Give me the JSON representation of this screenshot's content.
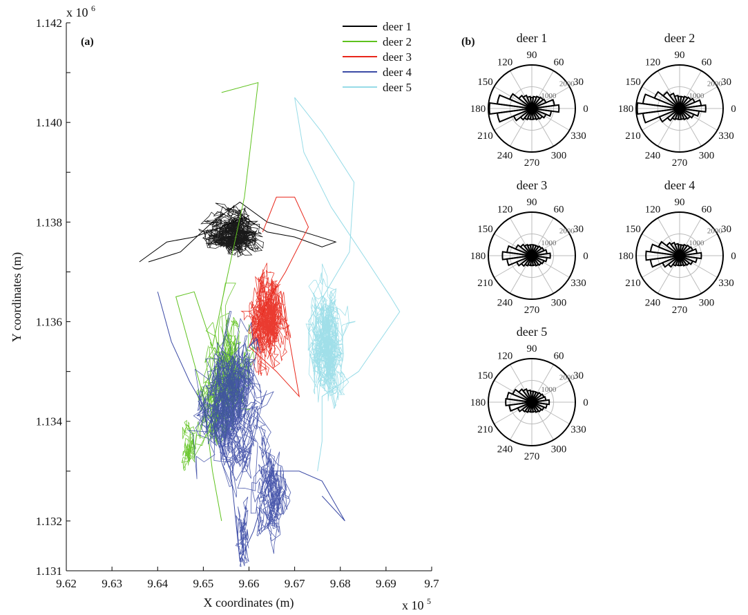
{
  "chart_data": [
    {
      "type": "line",
      "panel_label": "(a)",
      "xlabel": "X coordinates (m)",
      "ylabel": "Y coordinates (m)",
      "x_multiplier": "x 10",
      "x_multiplier_exp": "5",
      "y_multiplier": "x 10",
      "y_multiplier_exp": "6",
      "xlim": [
        9.62,
        9.7
      ],
      "ylim": [
        1.131,
        1.142
      ],
      "xticks": [
        "9.62",
        "9.63",
        "9.64",
        "9.65",
        "9.66",
        "9.67",
        "9.68",
        "9.69",
        "9.7"
      ],
      "yticks": [
        "1.131",
        "1.132",
        "1.133",
        "1.134",
        "1.135",
        "1.136",
        "1.137",
        "1.138",
        "1.139",
        "1.140",
        "1.141",
        "1.142"
      ],
      "ytick_labels_shown": [
        "1.131",
        "1.132",
        "1.134",
        "1.136",
        "1.138",
        "1.140",
        "1.142"
      ],
      "legend_position": "top-right",
      "series": [
        {
          "name": "deer 1",
          "color": "#000000",
          "clusters": [
            {
              "cx": 9.657,
              "cy": 1.1378,
              "sx": 0.0042,
              "sy": 0.00028,
              "n": 900
            }
          ],
          "path": [
            [
              9.636,
              1.1372
            ],
            [
              9.642,
              1.1376
            ],
            [
              9.648,
              1.1377
            ],
            [
              9.654,
              1.1379
            ],
            [
              9.659,
              1.1381
            ],
            [
              9.664,
              1.1378
            ],
            [
              9.67,
              1.1377
            ],
            [
              9.676,
              1.1375
            ],
            [
              9.679,
              1.1376
            ],
            [
              9.672,
              1.1378
            ],
            [
              9.664,
              1.138
            ],
            [
              9.658,
              1.1384
            ],
            [
              9.652,
              1.138
            ],
            [
              9.645,
              1.1374
            ],
            [
              9.638,
              1.1372
            ]
          ]
        },
        {
          "name": "deer 2",
          "color": "#5ec21d",
          "clusters": [
            {
              "cx": 9.655,
              "cy": 1.1348,
              "sx": 0.0028,
              "sy": 0.0007,
              "n": 650
            },
            {
              "cx": 9.647,
              "cy": 1.1335,
              "sx": 0.0012,
              "sy": 0.0004,
              "n": 120
            }
          ],
          "path": [
            [
              9.654,
              1.1406
            ],
            [
              9.662,
              1.1408
            ],
            [
              9.659,
              1.1385
            ],
            [
              9.655,
              1.1368
            ],
            [
              9.652,
              1.1355
            ],
            [
              9.648,
              1.1366
            ],
            [
              9.644,
              1.1365
            ],
            [
              9.65,
              1.1345
            ],
            [
              9.652,
              1.133
            ],
            [
              9.654,
              1.132
            ]
          ]
        },
        {
          "name": "deer 3",
          "color": "#e8261a",
          "clusters": [
            {
              "cx": 9.664,
              "cy": 1.136,
              "sx": 0.0021,
              "sy": 0.00055,
              "n": 850
            }
          ],
          "path": [
            [
              9.663,
              1.1378
            ],
            [
              9.666,
              1.1385
            ],
            [
              9.67,
              1.1385
            ],
            [
              9.673,
              1.1379
            ],
            [
              9.668,
              1.137
            ],
            [
              9.664,
              1.1364
            ],
            [
              9.66,
              1.1355
            ],
            [
              9.666,
              1.135
            ],
            [
              9.671,
              1.1345
            ],
            [
              9.667,
              1.1366
            ]
          ]
        },
        {
          "name": "deer 4",
          "color": "#3b4aa5",
          "clusters": [
            {
              "cx": 9.656,
              "cy": 1.1344,
              "sx": 0.0037,
              "sy": 0.0009,
              "n": 950
            },
            {
              "cx": 9.665,
              "cy": 1.1327,
              "sx": 0.0022,
              "sy": 0.0006,
              "n": 350
            },
            {
              "cx": 9.659,
              "cy": 1.1318,
              "sx": 0.0012,
              "sy": 0.0004,
              "n": 120
            }
          ],
          "path": [
            [
              9.64,
              1.1366
            ],
            [
              9.643,
              1.1356
            ],
            [
              9.647,
              1.1348
            ],
            [
              9.652,
              1.134
            ],
            [
              9.656,
              1.133
            ],
            [
              9.658,
              1.1312
            ],
            [
              9.661,
              1.1318
            ],
            [
              9.665,
              1.133
            ],
            [
              9.671,
              1.133
            ],
            [
              9.676,
              1.1328
            ],
            [
              9.681,
              1.132
            ],
            [
              9.676,
              1.1325
            ]
          ]
        },
        {
          "name": "deer 5",
          "color": "#96dbe7",
          "clusters": [
            {
              "cx": 9.677,
              "cy": 1.1355,
              "sx": 0.0025,
              "sy": 0.00065,
              "n": 850
            }
          ],
          "path": [
            [
              9.673,
              1.136
            ],
            [
              9.682,
              1.1374
            ],
            [
              9.683,
              1.1388
            ],
            [
              9.676,
              1.1398
            ],
            [
              9.67,
              1.1405
            ],
            [
              9.672,
              1.1394
            ],
            [
              9.678,
              1.1383
            ],
            [
              9.686,
              1.1372
            ],
            [
              9.691,
              1.1365
            ],
            [
              9.693,
              1.1362
            ],
            [
              9.684,
              1.135
            ],
            [
              9.676,
              1.1345
            ],
            [
              9.676,
              1.1336
            ],
            [
              9.675,
              1.133
            ]
          ]
        }
      ]
    },
    {
      "type": "rose",
      "panel_label": "(b)",
      "angle_labels": [
        "0",
        "30",
        "60",
        "90",
        "120",
        "150",
        "180",
        "210",
        "240",
        "270",
        "300",
        "330"
      ],
      "radial_max": 2000,
      "radial_ticks": [
        1000,
        2000
      ],
      "radial_tick_labels": [
        "1000",
        "2000"
      ],
      "bin_width_deg": 15,
      "bin_centers_deg": [
        0,
        15,
        30,
        45,
        60,
        75,
        90,
        105,
        120,
        135,
        150,
        165,
        180,
        195,
        210,
        225,
        240,
        255,
        270,
        285,
        300,
        315,
        330,
        345
      ],
      "roses": [
        {
          "title": "deer 1",
          "values": [
            1250,
            1050,
            700,
            650,
            600,
            550,
            500,
            550,
            650,
            750,
            1100,
            1600,
            1950,
            1600,
            900,
            650,
            550,
            500,
            500,
            500,
            550,
            600,
            700,
            900
          ]
        },
        {
          "title": "deer 2",
          "values": [
            1200,
            1000,
            750,
            650,
            600,
            550,
            550,
            600,
            750,
            950,
            1250,
            1700,
            1950,
            1700,
            1000,
            700,
            550,
            500,
            500,
            500,
            550,
            600,
            700,
            900
          ]
        },
        {
          "title": "deer 3",
          "values": [
            850,
            700,
            600,
            550,
            500,
            500,
            500,
            500,
            550,
            650,
            800,
            1150,
            1350,
            1150,
            750,
            600,
            500,
            450,
            450,
            450,
            500,
            550,
            600,
            700
          ]
        },
        {
          "title": "deer 4",
          "values": [
            1000,
            800,
            650,
            600,
            550,
            500,
            500,
            550,
            650,
            750,
            1050,
            1350,
            1550,
            1350,
            850,
            650,
            500,
            450,
            450,
            450,
            500,
            550,
            650,
            800
          ]
        },
        {
          "title": "deer 5",
          "values": [
            800,
            650,
            600,
            550,
            500,
            500,
            500,
            550,
            650,
            750,
            950,
            1150,
            1200,
            1050,
            700,
            550,
            500,
            450,
            450,
            450,
            500,
            550,
            600,
            700
          ]
        }
      ]
    }
  ]
}
